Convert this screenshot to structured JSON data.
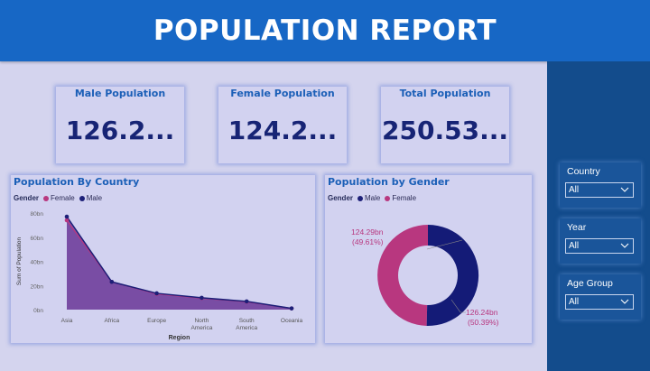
{
  "header": {
    "title": "POPULATION REPORT"
  },
  "kpis": [
    {
      "label": "Male Population",
      "value": "126.2..."
    },
    {
      "label": "Female Population",
      "value": "124.2..."
    },
    {
      "label": "Total Population",
      "value": "250.53..."
    }
  ],
  "country_chart": {
    "title": "Population By Country",
    "legend": {
      "title": "Gender",
      "items": [
        {
          "label": "Female",
          "color": "#b8377f"
        },
        {
          "label": "Male",
          "color": "#1c1f78"
        }
      ]
    }
  },
  "gender_chart": {
    "title": "Population by Gender",
    "legend": {
      "title": "Gender",
      "items": [
        {
          "label": "Male",
          "color": "#1c1f78"
        },
        {
          "label": "Female",
          "color": "#b8377f"
        }
      ]
    },
    "female_label": {
      "value": "124.29bn",
      "pct": "(49.61%)"
    },
    "male_label": {
      "value": "126.24bn",
      "pct": "(50.39%)"
    }
  },
  "chart_data": [
    {
      "type": "area",
      "title": "Population By Country",
      "xlabel": "Region",
      "ylabel": "Sum of Population",
      "categories": [
        "Asia",
        "Africa",
        "Europe",
        "North America",
        "South America",
        "Oceania"
      ],
      "y_ticks": [
        "0bn",
        "20bn",
        "40bn",
        "60bn",
        "80bn"
      ],
      "ylim": [
        0,
        80
      ],
      "series": [
        {
          "name": "Female",
          "color": "#b8377f",
          "values": [
            74,
            23,
            13,
            9.5,
            6.5,
            1
          ]
        },
        {
          "name": "Male",
          "color": "#1c1f78",
          "values": [
            77,
            23,
            13.5,
            9.8,
            6.8,
            1
          ]
        }
      ]
    },
    {
      "type": "pie",
      "title": "Population by Gender",
      "categories": [
        "Male",
        "Female"
      ],
      "values": [
        126.24,
        124.29
      ],
      "percentages": [
        50.39,
        49.61
      ],
      "colors": [
        "#141b77",
        "#b8377f"
      ]
    }
  ],
  "filters": [
    {
      "label": "Country",
      "value": "All"
    },
    {
      "label": "Year",
      "value": "All"
    },
    {
      "label": "Age Group",
      "value": "All"
    }
  ]
}
